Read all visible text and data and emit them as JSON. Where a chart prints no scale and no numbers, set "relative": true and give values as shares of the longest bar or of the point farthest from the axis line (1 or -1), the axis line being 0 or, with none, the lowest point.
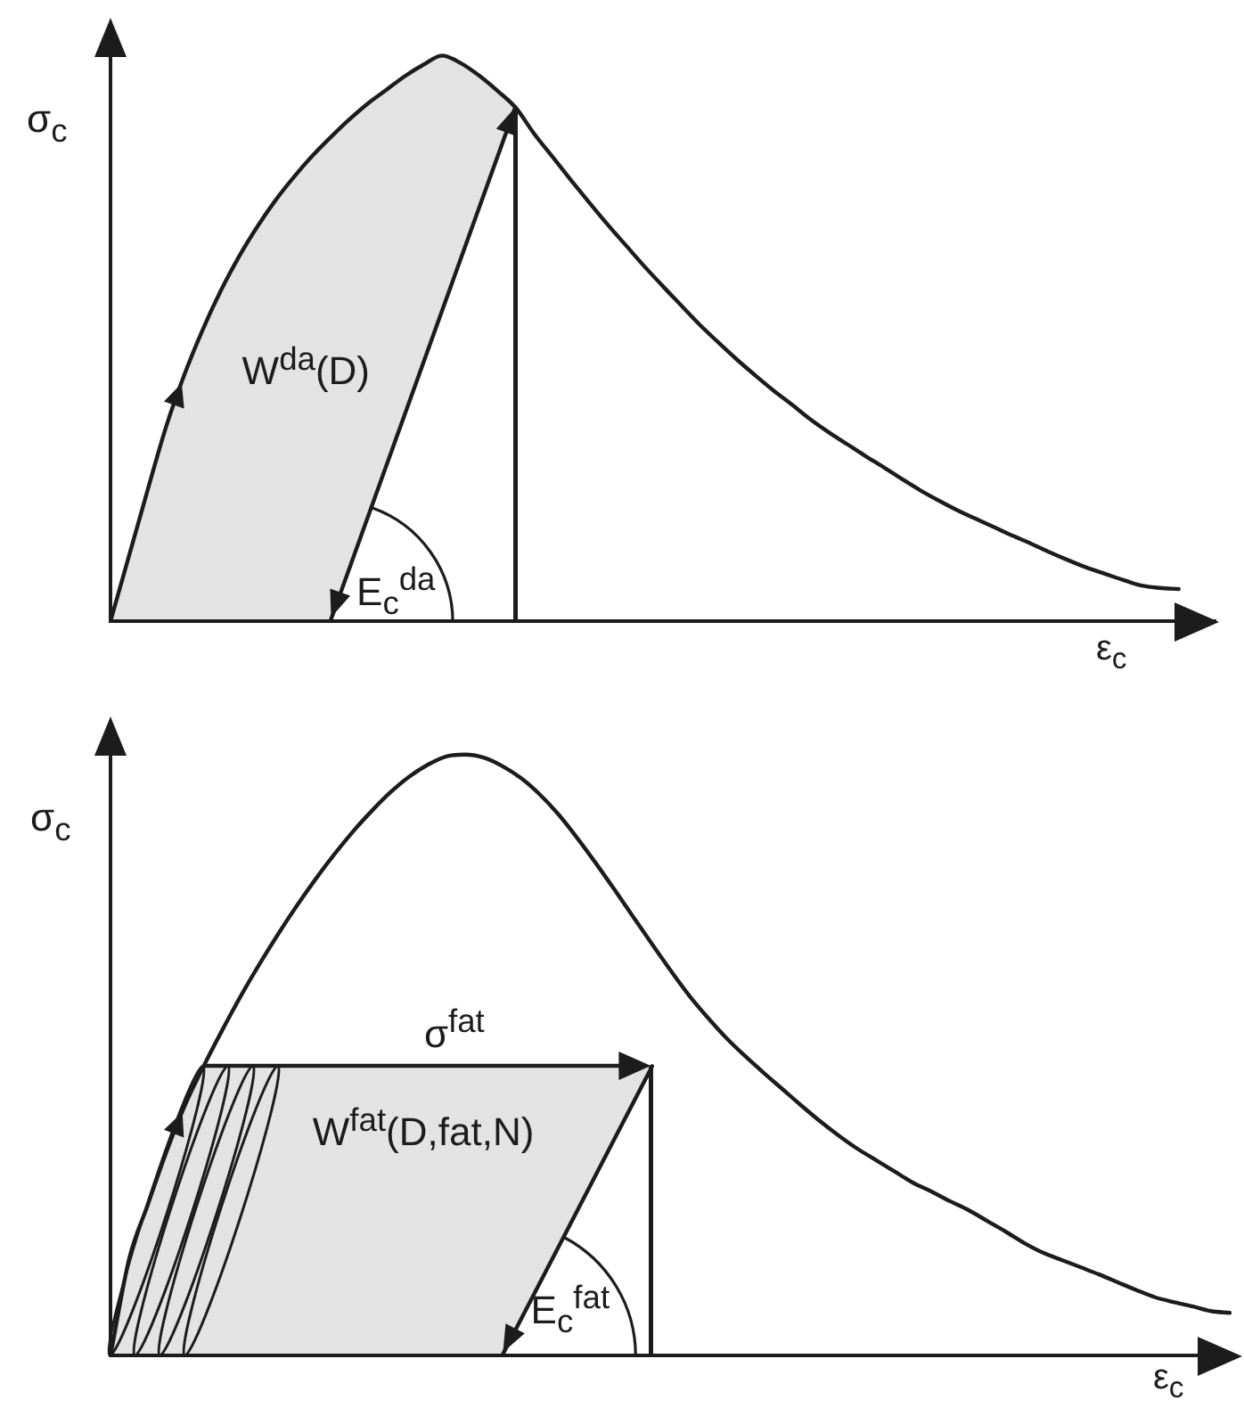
{
  "chart_data": [
    {
      "type": "line",
      "xlabel": "ε$_{c}$",
      "ylabel": "σ$_{c}$",
      "relative": true,
      "annotations": [
        "W$^{da}$(D)",
        "E$_{c}$$^{da}$"
      ],
      "categories": [
        null,
        null,
        null,
        null,
        null,
        null,
        null,
        null,
        null,
        null,
        null,
        null,
        null,
        null,
        null,
        null,
        null,
        null,
        null,
        null,
        null,
        null,
        null,
        null,
        null,
        null,
        null,
        null,
        null,
        null,
        null,
        null,
        null,
        null,
        null,
        null,
        null,
        null,
        null,
        null,
        null,
        null,
        null,
        null,
        null,
        null,
        null,
        null,
        null,
        null,
        null,
        null,
        null,
        null,
        null,
        null,
        null,
        null,
        null,
        null,
        null
      ],
      "series": [
        {
          "color": "#1c1c1c",
          "values": [
            0,
            0.115,
            0.23,
            0.342,
            0.435,
            0.515,
            0.585,
            0.646,
            0.699,
            0.746,
            0.787,
            0.824,
            0.857,
            0.888,
            0.916,
            0.94,
            0.964,
            0.984,
            1,
            0.987,
            0.965,
            0.938,
            0.908,
            0.862,
            0.821,
            0.78,
            0.74,
            0.701,
            0.664,
            0.627,
            0.592,
            0.558,
            0.524,
            0.493,
            0.463,
            0.435,
            0.408,
            0.383,
            0.357,
            0.334,
            0.313,
            0.292,
            0.272,
            0.251,
            0.231,
            0.213,
            0.196,
            0.181,
            0.166,
            0.151,
            0.137,
            0.122,
            0.108,
            0.095,
            0.084,
            0.073,
            0.063,
            0.059,
            0.057,
            null,
            null
          ]
        }
      ]
    },
    {
      "type": "line",
      "xlabel": "ε$_{c}$",
      "ylabel": "σ$_{c}$",
      "relative": true,
      "annotations": [
        "σ$^{fat}$",
        "W$^{fat}$(D,fat,N)",
        "E$_{c}$$^{fat}$"
      ],
      "categories": [
        null,
        null,
        null,
        null,
        null,
        null,
        null,
        null,
        null,
        null,
        null,
        null,
        null,
        null,
        null,
        null,
        null,
        null,
        null,
        null,
        null,
        null,
        null,
        null,
        null,
        null,
        null,
        null,
        null,
        null,
        null,
        null,
        null,
        null,
        null,
        null,
        null,
        null,
        null,
        null,
        null,
        null,
        null,
        null,
        null,
        null,
        null,
        null,
        null,
        null,
        null,
        null,
        null,
        null,
        null,
        null,
        null,
        null,
        null,
        null,
        null
      ],
      "series": [
        {
          "color": "#1c1c1c",
          "values": [
            0,
            0.161,
            0.251,
            0.339,
            0.417,
            0.482,
            0.542,
            0.599,
            0.652,
            0.702,
            0.749,
            0.793,
            0.834,
            0.872,
            0.906,
            0.937,
            0.963,
            0.983,
            0.997,
            1,
            0.995,
            0.981,
            0.961,
            0.934,
            0.901,
            0.862,
            0.82,
            0.776,
            0.731,
            0.686,
            0.642,
            0.6,
            0.563,
            0.529,
            0.499,
            0.471,
            0.444,
            0.417,
            0.391,
            0.367,
            0.345,
            0.326,
            0.307,
            0.288,
            0.273,
            0.257,
            0.242,
            0.224,
            0.206,
            0.187,
            0.171,
            0.159,
            0.147,
            0.135,
            0.122,
            0.109,
            0.097,
            0.089,
            0.082,
            0.074,
            0.071
          ]
        }
      ]
    }
  ]
}
